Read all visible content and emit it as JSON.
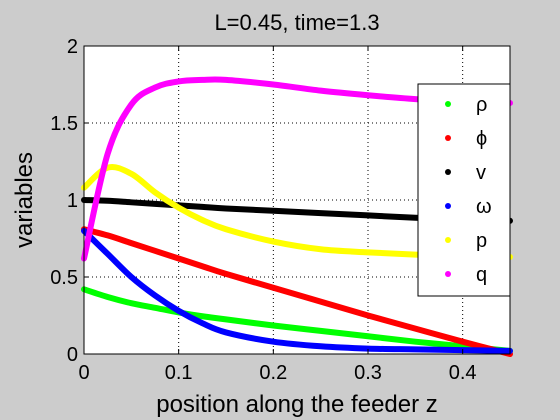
{
  "chart_data": {
    "type": "line",
    "title": "L=0.45, time=1.3",
    "xlabel": "position along the feeder z",
    "ylabel": "variables",
    "xlim": [
      0,
      0.45
    ],
    "ylim": [
      0,
      2
    ],
    "xticks": [
      0,
      0.1,
      0.2,
      0.3,
      0.4
    ],
    "xtick_labels": [
      "0",
      "0.1",
      "0.2",
      "0.3",
      "0.4"
    ],
    "yticks": [
      0,
      0.5,
      1,
      1.5,
      2
    ],
    "ytick_labels": [
      "0",
      "0.5",
      "1",
      "1.5",
      "2"
    ],
    "grid": true,
    "grid_style": "dotted",
    "legend_position": "right",
    "x": [
      0,
      0.025,
      0.05,
      0.075,
      0.1,
      0.125,
      0.15,
      0.2,
      0.25,
      0.3,
      0.35,
      0.4,
      0.45
    ],
    "series": [
      {
        "name": "ρ",
        "color": "#00ff00",
        "values": [
          0.42,
          0.37,
          0.33,
          0.3,
          0.27,
          0.245,
          0.225,
          0.185,
          0.15,
          0.115,
          0.08,
          0.05,
          0.02
        ]
      },
      {
        "name": "ϕ",
        "color": "#ff0000",
        "values": [
          0.81,
          0.77,
          0.72,
          0.67,
          0.62,
          0.57,
          0.52,
          0.43,
          0.34,
          0.25,
          0.165,
          0.08,
          0.0
        ]
      },
      {
        "name": "v",
        "color": "#000000",
        "values": [
          1.0,
          0.995,
          0.985,
          0.975,
          0.965,
          0.955,
          0.945,
          0.93,
          0.915,
          0.9,
          0.885,
          0.875,
          0.865
        ]
      },
      {
        "name": "ω",
        "color": "#0000ff",
        "values": [
          0.8,
          0.65,
          0.5,
          0.38,
          0.28,
          0.2,
          0.14,
          0.08,
          0.05,
          0.035,
          0.03,
          0.025,
          0.02
        ]
      },
      {
        "name": "p",
        "color": "#ffff00",
        "values": [
          1.08,
          1.21,
          1.17,
          1.05,
          0.95,
          0.87,
          0.81,
          0.73,
          0.68,
          0.66,
          0.645,
          0.635,
          0.63
        ]
      },
      {
        "name": "q",
        "color": "#ff00ff",
        "values": [
          0.62,
          1.3,
          1.62,
          1.73,
          1.77,
          1.78,
          1.78,
          1.75,
          1.71,
          1.68,
          1.655,
          1.64,
          1.63
        ]
      }
    ]
  }
}
